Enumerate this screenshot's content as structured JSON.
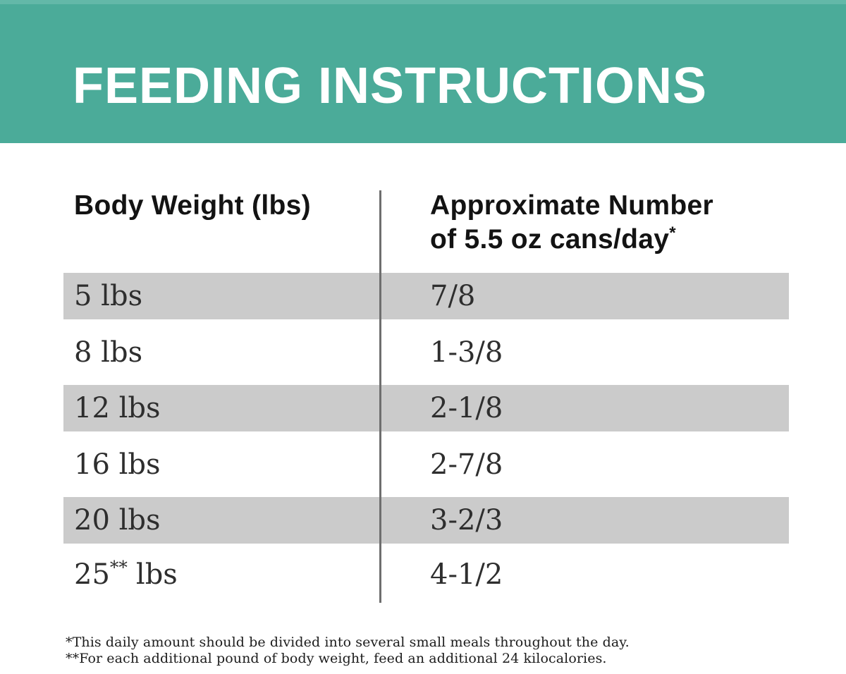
{
  "banner": {
    "title": "FEEDING INSTRUCTIONS",
    "bg_color": "#4bab99",
    "text_color": "#ffffff"
  },
  "table": {
    "header": {
      "col1": "Body Weight (lbs)",
      "col2_line1": "Approximate Number",
      "col2_line2": "of 5.5 oz cans/day",
      "col2_marker": "*"
    },
    "shaded_row_color": "#cbcbcb",
    "divider_color": "#6e6e6e",
    "rows": [
      {
        "weight": "5 lbs",
        "cans": "7/8"
      },
      {
        "weight": "8 lbs",
        "cans": "1-3/8"
      },
      {
        "weight": "12 lbs",
        "cans": "2-1/8"
      },
      {
        "weight": "16 lbs",
        "cans": "2-7/8"
      },
      {
        "weight": "20 lbs",
        "cans": "3-2/3"
      },
      {
        "weight_base": "25",
        "weight_marker": "**",
        "weight_suffix": "lbs",
        "cans": "4-1/2"
      }
    ]
  },
  "footnotes": [
    "*This daily amount should be divided into several small meals throughout the day.",
    "**For each additional pound of body weight, feed an additional 24 kilocalories."
  ]
}
